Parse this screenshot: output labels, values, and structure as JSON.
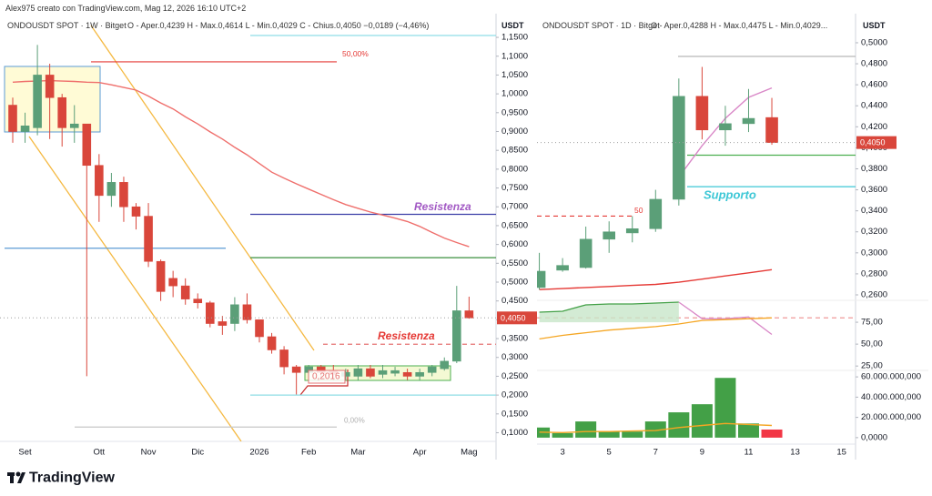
{
  "header": "Alex975 creato con TradingView.com, Mag 12, 2026 16:10 UTC+2",
  "brand": "TradingView",
  "chart_data": [
    {
      "type": "candlestick",
      "title": "ONDOUSDT SPOT · 1W · Bitget",
      "ohlc": "O - Aper.0,4239   H - Max.0,4614   L - Min.0,4029   C - Chius.0,4050   −0,0189 (−4,46%)",
      "unit": "USDT",
      "categories": [
        null,
        "Set",
        null,
        null,
        null,
        null,
        null,
        "Ott",
        null,
        null,
        null,
        "Nov",
        null,
        null,
        null,
        "Dic",
        null,
        null,
        null,
        null,
        "2026",
        null,
        null,
        null,
        "Feb",
        null,
        null,
        null,
        "Mar",
        null,
        null,
        null,
        null,
        "Apr",
        null,
        null,
        null,
        "Mag"
      ],
      "open": [
        0.97,
        0.9,
        0.91,
        1.05,
        0.99,
        0.91,
        0.92,
        0.81,
        0.73,
        0.765,
        0.7,
        0.675,
        0.555,
        0.51,
        0.49,
        0.455,
        0.445,
        0.395,
        0.39,
        0.44,
        0.4,
        0.355,
        0.32,
        0.275,
        0.26,
        0.275,
        0.265,
        0.25,
        0.25,
        0.27,
        0.255,
        0.258,
        0.26,
        0.25,
        0.26,
        0.27,
        0.29,
        0.4239
      ],
      "high": [
        0.99,
        0.95,
        1.13,
        1.08,
        1.0,
        0.97,
        0.92,
        0.84,
        0.79,
        0.78,
        0.71,
        0.71,
        0.56,
        0.53,
        0.51,
        0.47,
        0.45,
        0.41,
        0.46,
        0.47,
        0.4,
        0.365,
        0.33,
        0.28,
        0.28,
        0.28,
        0.28,
        0.27,
        0.28,
        0.28,
        0.28,
        0.275,
        0.27,
        0.27,
        0.28,
        0.3,
        0.49,
        0.4614
      ],
      "low": [
        0.87,
        0.87,
        0.89,
        0.88,
        0.86,
        0.87,
        0.25,
        0.66,
        0.7,
        0.66,
        0.64,
        0.54,
        0.45,
        0.46,
        0.44,
        0.43,
        0.38,
        0.36,
        0.37,
        0.39,
        0.34,
        0.31,
        0.255,
        0.2016,
        0.24,
        0.245,
        0.24,
        0.24,
        0.24,
        0.245,
        0.245,
        0.25,
        0.24,
        0.24,
        0.25,
        0.265,
        0.285,
        0.4029
      ],
      "close": [
        0.9,
        0.915,
        1.05,
        0.99,
        0.91,
        0.92,
        0.81,
        0.73,
        0.765,
        0.7,
        0.675,
        0.555,
        0.475,
        0.49,
        0.455,
        0.445,
        0.39,
        0.385,
        0.44,
        0.4,
        0.355,
        0.32,
        0.275,
        0.26,
        0.275,
        0.26,
        0.255,
        0.26,
        0.27,
        0.25,
        0.265,
        0.265,
        0.25,
        0.26,
        0.275,
        0.29,
        0.424,
        0.405
      ],
      "up_color": "#5b9f78",
      "down_color": "#d9463b",
      "ylim": [
        0.077,
        1.213
      ],
      "yticks": [
        {
          "value": 0.1,
          "label": "0,1000"
        },
        {
          "value": 0.15,
          "label": "0,1500"
        },
        {
          "value": 0.2,
          "label": "0,2000"
        },
        {
          "value": 0.25,
          "label": "0,2500"
        },
        {
          "value": 0.3,
          "label": "0,3000"
        },
        {
          "value": 0.35,
          "label": "0,3500"
        },
        {
          "value": 0.4,
          "label": "0,4000"
        },
        {
          "value": 0.45,
          "label": "0,4500"
        },
        {
          "value": 0.5,
          "label": "0,5000"
        },
        {
          "value": 0.55,
          "label": "0,5500"
        },
        {
          "value": 0.6,
          "label": "0,6000"
        },
        {
          "value": 0.65,
          "label": "0,6500"
        },
        {
          "value": 0.7,
          "label": "0,7000"
        },
        {
          "value": 0.75,
          "label": "0,7500"
        },
        {
          "value": 0.8,
          "label": "0,8000"
        },
        {
          "value": 0.85,
          "label": "0,8500"
        },
        {
          "value": 0.9,
          "label": "0,9000"
        },
        {
          "value": 0.95,
          "label": "0,9500"
        },
        {
          "value": 1.0,
          "label": "1,0000"
        },
        {
          "value": 1.05,
          "label": "1,0500"
        },
        {
          "value": 1.1,
          "label": "1,1000"
        },
        {
          "value": 1.15,
          "label": "1,1500"
        }
      ],
      "lines": [
        {
          "color": "#ef6f6c",
          "values": [
            1.031,
            1.033,
            1.034,
            1.035,
            1.034,
            1.033,
            1.031,
            1.03,
            1.024,
            1.017,
            1.01,
            0.994,
            0.976,
            0.96,
            0.939,
            0.92,
            0.899,
            0.88,
            0.858,
            0.838,
            0.815,
            0.792,
            0.776,
            0.761,
            0.747,
            0.733,
            0.719,
            0.706,
            0.696,
            0.686,
            0.678,
            0.67,
            0.661,
            0.648,
            0.632,
            0.617,
            0.605,
            0.594
          ]
        }
      ],
      "levels": [
        {
          "value": 1.155,
          "color": "#8fdde6",
          "dash": false
        },
        {
          "value": 1.085,
          "color": "#e53935",
          "dash": false
        },
        {
          "value": 0.68,
          "color": "#3b3fa8",
          "dash": false
        },
        {
          "value": 0.565,
          "color": "#3a8f3e",
          "dash": false
        },
        {
          "value": 0.59,
          "color": "#5b9bd5",
          "dash": false
        },
        {
          "value": 0.335,
          "color": "#e57373",
          "dash": true
        },
        {
          "value": 0.2,
          "color": "#8fdde6",
          "dash": false
        },
        {
          "value": 0.115,
          "color": "#c8c8c8",
          "dash": false
        }
      ],
      "last_label": "0,4050",
      "annotations": [
        "50,00%",
        "Resistenza",
        "Resistenza",
        "0,2016",
        "0,00%"
      ]
    },
    {
      "type": "candlestick",
      "title": "ONDOUSDT SPOT · 1D · Bitget",
      "ohlc": "O - Aper.0,4288   H - Max.0,4475   L - Min.0,4029...",
      "unit": "USDT",
      "x": [
        2,
        3,
        4,
        5,
        6,
        7,
        8,
        9,
        10,
        11,
        12
      ],
      "xlim": [
        1.9,
        15.6
      ],
      "xticks": [
        3,
        5,
        7,
        9,
        11,
        13,
        15
      ],
      "open": [
        0.267,
        0.2835,
        0.286,
        0.313,
        0.319,
        0.323,
        0.351,
        0.449,
        0.417,
        0.423,
        0.4288
      ],
      "high": [
        0.3,
        0.295,
        0.325,
        0.33,
        0.335,
        0.36,
        0.466,
        0.477,
        0.44,
        0.456,
        0.4475
      ],
      "low": [
        0.265,
        0.282,
        0.285,
        0.3,
        0.31,
        0.32,
        0.345,
        0.408,
        0.402,
        0.415,
        0.4029
      ],
      "close": [
        0.2825,
        0.288,
        0.313,
        0.32,
        0.323,
        0.351,
        0.449,
        0.417,
        0.423,
        0.428,
        0.405
      ],
      "up_color": "#5b9f78",
      "down_color": "#d9463b",
      "ylim": [
        0.2548,
        0.5277
      ],
      "yticks": [
        {
          "value": 0.26,
          "label": "0,2600"
        },
        {
          "value": 0.28,
          "label": "0,2800"
        },
        {
          "value": 0.3,
          "label": "0,3000"
        },
        {
          "value": 0.32,
          "label": "0,3200"
        },
        {
          "value": 0.34,
          "label": "0,3400"
        },
        {
          "value": 0.36,
          "label": "0,3600"
        },
        {
          "value": 0.38,
          "label": "0,3800"
        },
        {
          "value": 0.4,
          "label": "0,4000"
        },
        {
          "value": 0.42,
          "label": "0,4200"
        },
        {
          "value": 0.44,
          "label": "0,4400"
        },
        {
          "value": 0.46,
          "label": "0,4600"
        },
        {
          "value": 0.48,
          "label": "0,4800"
        },
        {
          "value": 0.5,
          "label": "0,5000"
        }
      ],
      "lines": [
        {
          "color": "#e53935",
          "values": [
            0.265,
            0.266,
            0.267,
            0.268,
            0.269,
            0.27,
            0.272,
            0.275,
            0.278,
            0.281,
            0.284
          ]
        },
        {
          "color": "#d987c7",
          "values": [
            null,
            null,
            null,
            null,
            null,
            null,
            0.372,
            0.402,
            0.428,
            0.448,
            0.457
          ]
        }
      ],
      "levels": [
        {
          "value": 0.487,
          "color": "#b8b8b8",
          "dash": false
        },
        {
          "value": 0.393,
          "color": "#4caf50",
          "dash": false
        },
        {
          "value": 0.363,
          "color": "#3cc7d6",
          "dash": false
        },
        {
          "value": 0.335,
          "color": "#e53935",
          "dash": true
        }
      ],
      "last_label": "0,4050",
      "annotations": [
        "Supporto",
        "50"
      ]
    },
    {
      "type": "line",
      "x": [
        2,
        3,
        4,
        5,
        6,
        7,
        8,
        9,
        10,
        11,
        12
      ],
      "xlim": [
        1.9,
        15.6
      ],
      "ylim": [
        20,
        100
      ],
      "yticks": [
        {
          "value": 25,
          "label": "25,00"
        },
        {
          "value": 50,
          "label": "50,00"
        },
        {
          "value": 75,
          "label": "75,00"
        }
      ],
      "series": [
        {
          "color": "#43a047",
          "fill": "#c8e6c9",
          "values": [
            86.5,
            87.5,
            94.8,
            95.8,
            95.8,
            96.9,
            97.9,
            null,
            null,
            null,
            null
          ]
        },
        {
          "color": "#d987c7",
          "values": [
            null,
            null,
            null,
            null,
            null,
            null,
            97.9,
            79,
            79,
            81,
            61
          ]
        },
        {
          "color": "#f5a623",
          "values": [
            56,
            60,
            63,
            66,
            68,
            70,
            73,
            77,
            78,
            79,
            80
          ]
        }
      ],
      "levels": [
        {
          "value": 80,
          "color": "#ef9a9a",
          "dash": true
        }
      ]
    },
    {
      "type": "bar",
      "x": [
        2,
        3,
        4,
        5,
        6,
        7,
        8,
        9,
        10,
        11,
        12
      ],
      "xlim": [
        1.9,
        15.6
      ],
      "ylim": [
        -6400000,
        66400000
      ],
      "yticks": [
        {
          "value": 0,
          "label": "0,0000"
        },
        {
          "value": 20000000,
          "label": "20.000.000,000"
        },
        {
          "value": 40000000,
          "label": "40.000.000,000"
        },
        {
          "value": 60000000,
          "label": "60.000.000,000"
        }
      ],
      "values": [
        10000000,
        4500000,
        16000000,
        6000000,
        6000000,
        16000000,
        25000000,
        33000000,
        59000000,
        14000000,
        8000000
      ],
      "colors": [
        "#43a047",
        "#43a047",
        "#43a047",
        "#43a047",
        "#43a047",
        "#43a047",
        "#43a047",
        "#43a047",
        "#43a047",
        "#43a047",
        "#f23645"
      ],
      "lines": [
        {
          "color": "#f5a623",
          "values": [
            5500000,
            5000000,
            6000000,
            6000000,
            6500000,
            7000000,
            10000000,
            12000000,
            14000000,
            13000000,
            12000000
          ]
        }
      ]
    }
  ]
}
